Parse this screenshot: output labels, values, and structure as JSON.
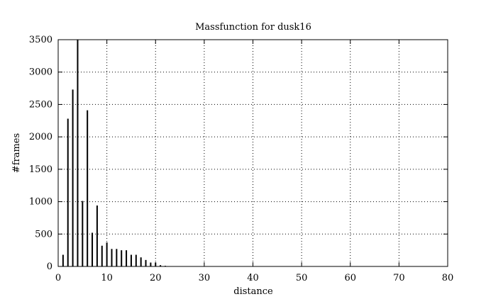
{
  "chart_data": {
    "type": "bar",
    "title": "Massfunction for dusk16",
    "xlabel": "distance",
    "ylabel": "#frames",
    "xlim": [
      0,
      80
    ],
    "ylim": [
      0,
      3500
    ],
    "xticks": [
      0,
      10,
      20,
      30,
      40,
      50,
      60,
      70,
      80
    ],
    "yticks": [
      0,
      500,
      1000,
      1500,
      2000,
      2500,
      3000,
      3500
    ],
    "grid": true,
    "grid_style": "dotted",
    "legend": "none",
    "bar_color": "#000000",
    "x": [
      1,
      2,
      3,
      4,
      5,
      6,
      7,
      8,
      9,
      10,
      11,
      12,
      13,
      14,
      15,
      16,
      17,
      18,
      19,
      20,
      21,
      22
    ],
    "values": [
      180,
      2280,
      2730,
      3500,
      1010,
      2410,
      520,
      940,
      320,
      370,
      270,
      270,
      250,
      250,
      180,
      180,
      140,
      100,
      60,
      60,
      20,
      10
    ]
  }
}
